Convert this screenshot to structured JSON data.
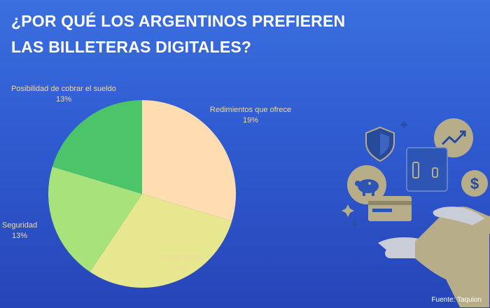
{
  "title": {
    "line1": "¿POR QUÉ LOS ARGENTINOS PREFIEREN",
    "line2": "LAS BILLETERAS DIGITALES?"
  },
  "source": "Fuente: Taquion",
  "chart_data": {
    "type": "pie",
    "labels": [
      "Redimientos que ofrece",
      "Funciamiento",
      "Seguridad",
      "Posibilidad de cobrar el sueldo"
    ],
    "values": [
      19,
      19,
      13,
      13
    ],
    "value_labels": [
      "19%",
      "19%",
      "13%",
      "13%"
    ],
    "colors": [
      "#ffddb0",
      "#e6e78f",
      "#a8e27a",
      "#4cc46a"
    ],
    "start_angle_deg": 0,
    "direction": "clockwise"
  },
  "colors": {
    "label_text": "#f3d9a0",
    "illustration_tan": "#b7ad88",
    "illustration_navy": "#274a9a"
  },
  "illustration": {
    "icons": [
      "shield-icon",
      "chart-up-icon",
      "dollar-coin-icon",
      "phone-icon",
      "piggy-bank-icon",
      "credit-card-icon",
      "hand-icon",
      "sparkle-icon"
    ]
  }
}
